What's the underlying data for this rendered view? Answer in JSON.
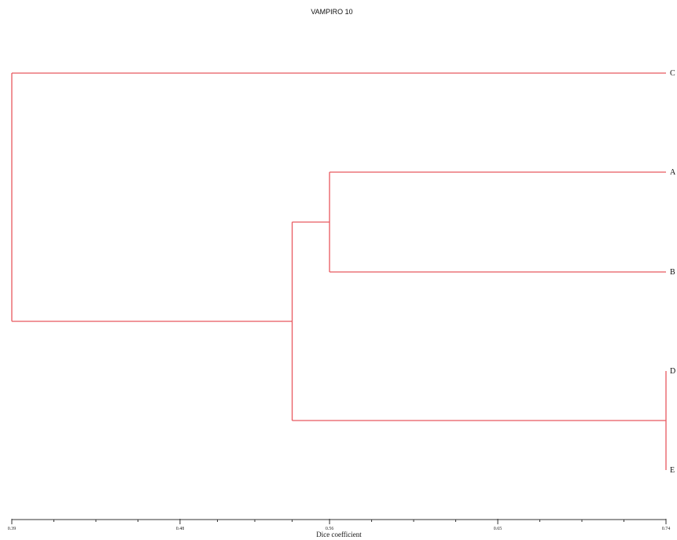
{
  "title": "VAMPIRO 10",
  "xlabel": "Dice coefficient",
  "colors": {
    "branch": "#e8595f",
    "axis": "#333333",
    "text": "#111111"
  },
  "axis": {
    "min": 0.39,
    "max": 0.74,
    "major_ticks": [
      0.39,
      0.48,
      0.56,
      0.65,
      0.74
    ],
    "major_tick_labels": [
      "0.39",
      "0.48",
      "0.56",
      "0.65",
      "0.74"
    ],
    "minor_per_interval": 3
  },
  "chart_data": {
    "type": "dendrogram",
    "title": "VAMPIRO 10",
    "xlabel": "Dice coefficient",
    "xlim": [
      0.39,
      0.74
    ],
    "leaves": [
      "C",
      "A",
      "B",
      "D",
      "E"
    ],
    "merges": [
      {
        "id": "DE",
        "children": [
          "D",
          "E"
        ],
        "similarity": 0.74
      },
      {
        "id": "AB",
        "children": [
          "A",
          "B"
        ],
        "similarity": 0.56
      },
      {
        "id": "ABDE",
        "children": [
          "AB",
          "DE"
        ],
        "similarity": 0.54
      },
      {
        "id": "root",
        "children": [
          "C",
          "ABDE"
        ],
        "similarity": 0.39
      }
    ]
  }
}
